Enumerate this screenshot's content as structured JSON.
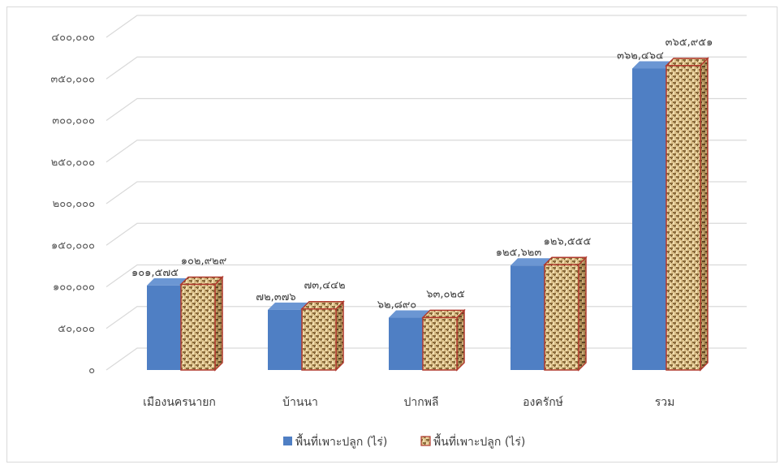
{
  "chart_data": {
    "type": "bar",
    "title": "",
    "xlabel": "",
    "ylabel": "",
    "categories": [
      "เมืองนครนายก",
      "บ้านนา",
      "ปากพลี",
      "องครักษ์",
      "รวม"
    ],
    "series": [
      {
        "name": "พื้นที่เพาะปลูก (ไร่)",
        "values": [
          101575,
          72376,
          62890,
          125623,
          362464
        ],
        "labels": [
          "๑๐๑,๕๗๕",
          "๗๒,๓๗๖",
          "๖๒,๘๙๐",
          "๑๒๕,๖๒๓",
          "๓๖๒,๔๖๔"
        ],
        "color": "#4f7fc4",
        "fill": "solid"
      },
      {
        "name": "พื้นที่เพาะปลูก (ไร่)",
        "values": [
          102929,
          73442,
          63025,
          126555,
          365951
        ],
        "labels": [
          "๑๐๒,๙๒๙",
          "๗๓,๔๔๒",
          "๖๓,๐๒๕",
          "๑๒๖,๕๕๕",
          "๓๖๕,๙๕๑"
        ],
        "color": "#c9a66b",
        "edge_color": "#b03a2e",
        "fill": "woven-texture"
      }
    ],
    "y_ticks": [
      0,
      50000,
      100000,
      150000,
      200000,
      250000,
      300000,
      350000,
      400000
    ],
    "y_tick_labels": [
      "๐",
      "๕๐,๐๐๐",
      "๑๐๐,๐๐๐",
      "๑๕๐,๐๐๐",
      "๒๐๐,๐๐๐",
      "๒๕๐,๐๐๐",
      "๓๐๐,๐๐๐",
      "๓๕๐,๐๐๐",
      "๔๐๐,๐๐๐"
    ],
    "ylim": [
      0,
      400000
    ],
    "grid": true,
    "three_d": true,
    "legend_position": "bottom"
  }
}
